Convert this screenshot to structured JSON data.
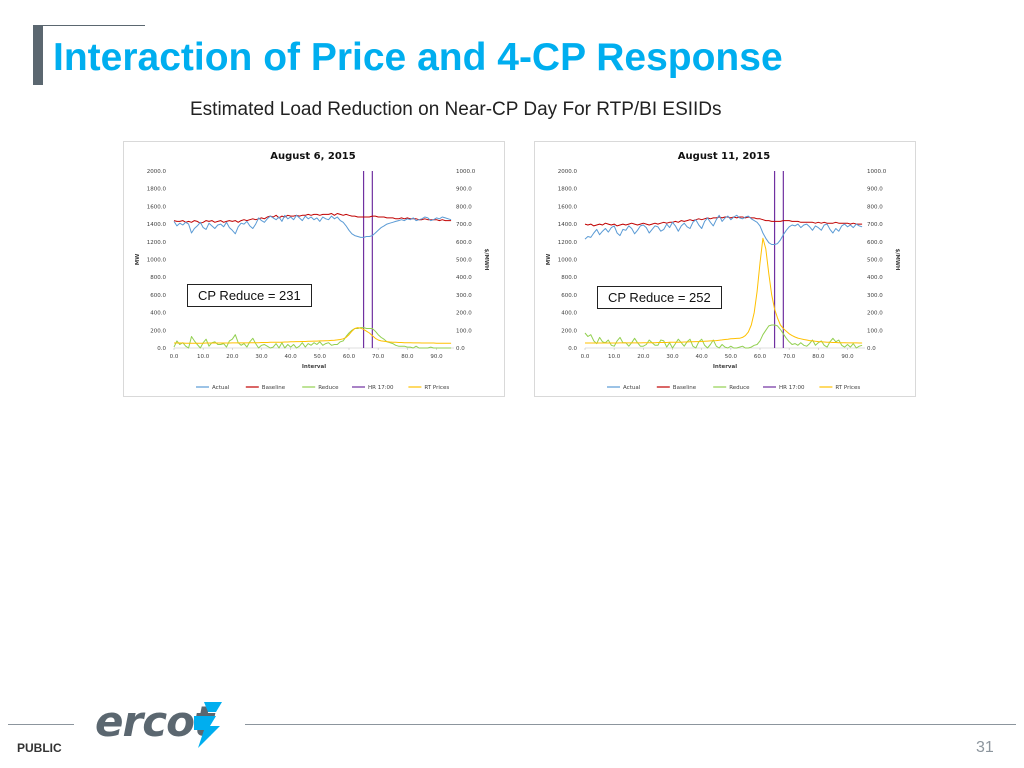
{
  "slide": {
    "title": "Interaction of Price and 4-CP Response",
    "subtitle": "Estimated Load Reduction on Near-CP Day For RTP/BI ESIIDs",
    "footer_label": "PUBLIC",
    "page_number": "31",
    "logo_text": "ercot"
  },
  "colors": {
    "title": "#00aeef",
    "actual": "#5b9bd5",
    "baseline": "#c00000",
    "reduce": "#92d050",
    "hr": "#7030a0",
    "rt_prices": "#ffc000"
  },
  "chart_data": [
    {
      "id": "left",
      "type": "line",
      "title": "August 6, 2015",
      "xlabel": "Interval",
      "ylabel": "MW",
      "y2label": "$/MWH",
      "xlim": [
        0,
        96
      ],
      "ylim": [
        0,
        2000
      ],
      "y2lim": [
        0,
        1000
      ],
      "x_ticks": [
        "0.0",
        "10.0",
        "20.0",
        "30.0",
        "40.0",
        "50.0",
        "60.0",
        "70.0",
        "80.0",
        "90.0"
      ],
      "y_ticks": [
        "0.0",
        "200.0",
        "400.0",
        "600.0",
        "800.0",
        "1000.0",
        "1200.0",
        "1400.0",
        "1600.0",
        "1800.0",
        "2000.0"
      ],
      "y2_ticks": [
        "0.0",
        "100.0",
        "200.0",
        "300.0",
        "400.0",
        "500.0",
        "600.0",
        "700.0",
        "800.0",
        "900.0",
        "1000.0"
      ],
      "legend": [
        "Actual",
        "Baseline",
        "Reduce",
        "HR 17:00",
        "RT Prices"
      ],
      "legend_position": "bottom",
      "annotation": "CP Reduce = 231",
      "hr_lines": [
        65,
        68
      ],
      "series": [
        {
          "name": "Actual",
          "axis": "left",
          "values": [
            1430,
            1380,
            1410,
            1390,
            1420,
            1400,
            1300,
            1350,
            1380,
            1420,
            1360,
            1340,
            1410,
            1380,
            1350,
            1390,
            1400,
            1370,
            1420,
            1360,
            1330,
            1290,
            1370,
            1410,
            1400,
            1430,
            1380,
            1350,
            1400,
            1470,
            1440,
            1420,
            1460,
            1490,
            1470,
            1450,
            1480,
            1430,
            1500,
            1460,
            1480,
            1450,
            1500,
            1470,
            1440,
            1490,
            1460,
            1480,
            1450,
            1470,
            1430,
            1480,
            1460,
            1450,
            1490,
            1460,
            1480,
            1440,
            1420,
            1380,
            1330,
            1290,
            1270,
            1260,
            1250,
            1250,
            1260,
            1260,
            1270,
            1300,
            1330,
            1360,
            1380,
            1400,
            1410,
            1420,
            1430,
            1440,
            1450,
            1440,
            1460,
            1450,
            1470,
            1440,
            1450,
            1460,
            1480,
            1470,
            1440,
            1450,
            1470,
            1460,
            1480,
            1470,
            1460,
            1450
          ]
        },
        {
          "name": "Baseline",
          "axis": "left",
          "values": [
            1440,
            1430,
            1430,
            1440,
            1420,
            1430,
            1420,
            1440,
            1430,
            1410,
            1420,
            1440,
            1430,
            1440,
            1420,
            1430,
            1440,
            1420,
            1430,
            1440,
            1430,
            1440,
            1420,
            1440,
            1450,
            1440,
            1450,
            1460,
            1450,
            1460,
            1470,
            1460,
            1480,
            1490,
            1480,
            1500,
            1470,
            1490,
            1480,
            1500,
            1490,
            1490,
            1500,
            1490,
            1500,
            1500,
            1510,
            1500,
            1510,
            1510,
            1500,
            1510,
            1510,
            1510,
            1520,
            1500,
            1520,
            1510,
            1500,
            1510,
            1500,
            1490,
            1490,
            1480,
            1480,
            1480,
            1480,
            1480,
            1490,
            1490,
            1480,
            1480,
            1480,
            1470,
            1470,
            1470,
            1460,
            1460,
            1470,
            1460,
            1470,
            1460,
            1460,
            1460,
            1450,
            1450,
            1460,
            1450,
            1450,
            1450,
            1450,
            1440,
            1450,
            1440,
            1440,
            1440
          ]
        },
        {
          "name": "Reduce",
          "axis": "left",
          "values": [
            10,
            80,
            40,
            60,
            20,
            0,
            130,
            80,
            40,
            -10,
            60,
            100,
            20,
            60,
            70,
            40,
            40,
            50,
            10,
            80,
            100,
            150,
            60,
            30,
            50,
            10,
            70,
            110,
            50,
            -10,
            30,
            40,
            20,
            -10,
            10,
            50,
            -10,
            60,
            -20,
            40,
            10,
            40,
            0,
            20,
            60,
            10,
            50,
            30,
            60,
            40,
            70,
            30,
            50,
            60,
            30,
            40,
            40,
            70,
            80,
            130,
            170,
            200,
            220,
            220,
            230,
            230,
            220,
            220,
            220,
            190,
            150,
            120,
            100,
            70,
            60,
            50,
            30,
            20,
            20,
            20,
            10,
            10,
            -10,
            20,
            0,
            -10,
            -20,
            -20,
            10,
            0,
            -20,
            -20,
            -30,
            -30,
            -20,
            -10
          ]
        },
        {
          "name": "RT Prices",
          "axis": "right",
          "values": [
            28,
            28,
            28,
            28,
            27,
            27,
            27,
            27,
            27,
            27,
            27,
            28,
            28,
            28,
            28,
            28,
            28,
            28,
            28,
            28,
            29,
            29,
            29,
            29,
            29,
            29,
            30,
            30,
            30,
            30,
            31,
            31,
            31,
            32,
            32,
            33,
            33,
            33,
            34,
            34,
            35,
            35,
            36,
            36,
            37,
            37,
            38,
            38,
            39,
            39,
            40,
            40,
            41,
            42,
            43,
            44,
            46,
            48,
            52,
            60,
            75,
            95,
            110,
            115,
            112,
            105,
            95,
            85,
            70,
            55,
            45,
            40,
            38,
            36,
            34,
            33,
            32,
            31,
            31,
            30,
            30,
            30,
            29,
            29,
            29,
            28,
            28,
            28,
            28,
            28,
            27,
            27,
            27,
            27,
            27,
            27
          ]
        }
      ]
    },
    {
      "id": "right",
      "type": "line",
      "title": "August 11, 2015",
      "xlabel": "Interval",
      "ylabel": "MW",
      "y2label": "$/MWH",
      "xlim": [
        0,
        96
      ],
      "ylim": [
        0,
        2000
      ],
      "y2lim": [
        0,
        1000
      ],
      "x_ticks": [
        "0.0",
        "10.0",
        "20.0",
        "30.0",
        "40.0",
        "50.0",
        "60.0",
        "70.0",
        "80.0",
        "90.0"
      ],
      "y_ticks": [
        "0.0",
        "200.0",
        "400.0",
        "600.0",
        "800.0",
        "1000.0",
        "1200.0",
        "1400.0",
        "1600.0",
        "1800.0",
        "2000.0"
      ],
      "y2_ticks": [
        "0.0",
        "100.0",
        "200.0",
        "300.0",
        "400.0",
        "500.0",
        "600.0",
        "700.0",
        "800.0",
        "900.0",
        "1000.0"
      ],
      "legend": [
        "Actual",
        "Baseline",
        "Reduce",
        "HR 17:00",
        "RT Prices"
      ],
      "legend_position": "bottom",
      "annotation": "CP Reduce = 252",
      "hr_lines": [
        65,
        68
      ],
      "series": [
        {
          "name": "Actual",
          "axis": "left",
          "values": [
            1230,
            1260,
            1250,
            1300,
            1340,
            1280,
            1320,
            1350,
            1310,
            1360,
            1380,
            1300,
            1270,
            1340,
            1330,
            1380,
            1350,
            1290,
            1330,
            1380,
            1390,
            1360,
            1300,
            1340,
            1380,
            1370,
            1320,
            1340,
            1400,
            1360,
            1420,
            1380,
            1320,
            1380,
            1410,
            1370,
            1350,
            1420,
            1450,
            1390,
            1350,
            1430,
            1470,
            1420,
            1380,
            1450,
            1500,
            1430,
            1470,
            1490,
            1450,
            1480,
            1500,
            1470,
            1460,
            1480,
            1490,
            1460,
            1440,
            1420,
            1380,
            1300,
            1240,
            1190,
            1170,
            1170,
            1180,
            1220,
            1280,
            1330,
            1370,
            1390,
            1380,
            1400,
            1360,
            1390,
            1400,
            1370,
            1330,
            1380,
            1360,
            1330,
            1390,
            1400,
            1340,
            1300,
            1350,
            1320,
            1380,
            1400,
            1370,
            1390,
            1360,
            1400,
            1380,
            1370
          ]
        },
        {
          "name": "Baseline",
          "axis": "left",
          "values": [
            1400,
            1390,
            1400,
            1380,
            1390,
            1400,
            1390,
            1410,
            1400,
            1390,
            1400,
            1380,
            1390,
            1400,
            1390,
            1400,
            1410,
            1400,
            1390,
            1400,
            1410,
            1400,
            1390,
            1400,
            1410,
            1400,
            1410,
            1420,
            1410,
            1420,
            1420,
            1430,
            1420,
            1440,
            1430,
            1440,
            1450,
            1440,
            1450,
            1460,
            1450,
            1460,
            1470,
            1460,
            1470,
            1470,
            1480,
            1470,
            1480,
            1480,
            1470,
            1480,
            1470,
            1480,
            1480,
            1470,
            1480,
            1470,
            1470,
            1460,
            1460,
            1450,
            1440,
            1440,
            1430,
            1430,
            1430,
            1430,
            1440,
            1440,
            1440,
            1430,
            1430,
            1430,
            1420,
            1420,
            1420,
            1420,
            1420,
            1410,
            1420,
            1410,
            1420,
            1410,
            1410,
            1410,
            1420,
            1410,
            1410,
            1410,
            1410,
            1400,
            1410,
            1400,
            1400,
            1400
          ]
        },
        {
          "name": "Reduce",
          "axis": "left",
          "values": [
            170,
            130,
            150,
            80,
            50,
            120,
            70,
            60,
            90,
            30,
            20,
            80,
            120,
            60,
            60,
            20,
            60,
            110,
            60,
            20,
            20,
            40,
            90,
            60,
            30,
            30,
            90,
            80,
            10,
            60,
            0,
            50,
            100,
            60,
            20,
            70,
            100,
            20,
            0,
            70,
            100,
            30,
            0,
            40,
            90,
            20,
            -20,
            40,
            10,
            -10,
            20,
            0,
            -30,
            10,
            20,
            -10,
            -10,
            10,
            30,
            40,
            80,
            150,
            200,
            250,
            260,
            260,
            250,
            210,
            160,
            110,
            70,
            40,
            50,
            30,
            60,
            30,
            20,
            50,
            90,
            30,
            60,
            80,
            30,
            10,
            70,
            110,
            70,
            90,
            30,
            10,
            40,
            10,
            50,
            0,
            20,
            30
          ]
        },
        {
          "name": "RT Prices",
          "axis": "right",
          "values": [
            28,
            28,
            28,
            28,
            28,
            28,
            28,
            28,
            28,
            28,
            28,
            28,
            29,
            29,
            29,
            29,
            29,
            29,
            29,
            29,
            30,
            30,
            30,
            30,
            30,
            31,
            31,
            31,
            31,
            32,
            32,
            32,
            33,
            33,
            34,
            34,
            35,
            35,
            36,
            36,
            37,
            38,
            39,
            40,
            41,
            42,
            44,
            46,
            48,
            50,
            52,
            53,
            54,
            55,
            60,
            70,
            90,
            130,
            200,
            320,
            480,
            620,
            560,
            420,
            300,
            220,
            170,
            130,
            110,
            95,
            80,
            70,
            62,
            56,
            52,
            48,
            45,
            42,
            40,
            38,
            36,
            35,
            34,
            33,
            32,
            31,
            31,
            30,
            30,
            30,
            29,
            29,
            29,
            29,
            28,
            28
          ]
        }
      ]
    }
  ]
}
